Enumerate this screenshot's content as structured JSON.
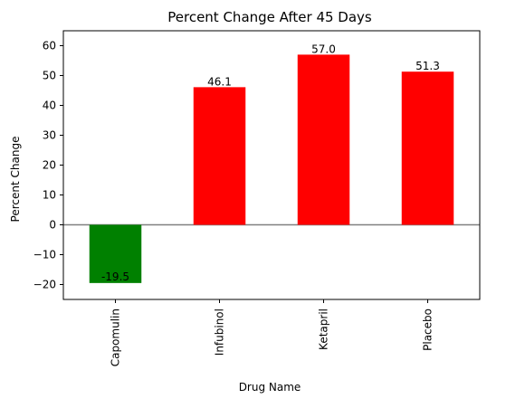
{
  "chart_data": {
    "type": "bar",
    "title": "Percent Change After 45 Days",
    "xlabel": "Drug Name",
    "ylabel": "Percent Change",
    "categories": [
      "Capomulin",
      "Infubinol",
      "Ketapril",
      "Placebo"
    ],
    "values": [
      -19.5,
      46.1,
      57.0,
      51.3
    ],
    "value_labels": [
      "-19.5",
      "46.1",
      "57.0",
      "51.3"
    ],
    "bar_colors": [
      "#008000",
      "#ff0000",
      "#ff0000",
      "#ff0000"
    ],
    "zero_line_color": "#808080",
    "ylim": [
      -25,
      65
    ],
    "yticks": [
      -20,
      -10,
      0,
      10,
      20,
      30,
      40,
      50,
      60
    ],
    "ytick_labels": [
      "−20",
      "−10",
      "0",
      "10",
      "20",
      "30",
      "40",
      "50",
      "60"
    ],
    "grid": false,
    "legend": "none"
  }
}
